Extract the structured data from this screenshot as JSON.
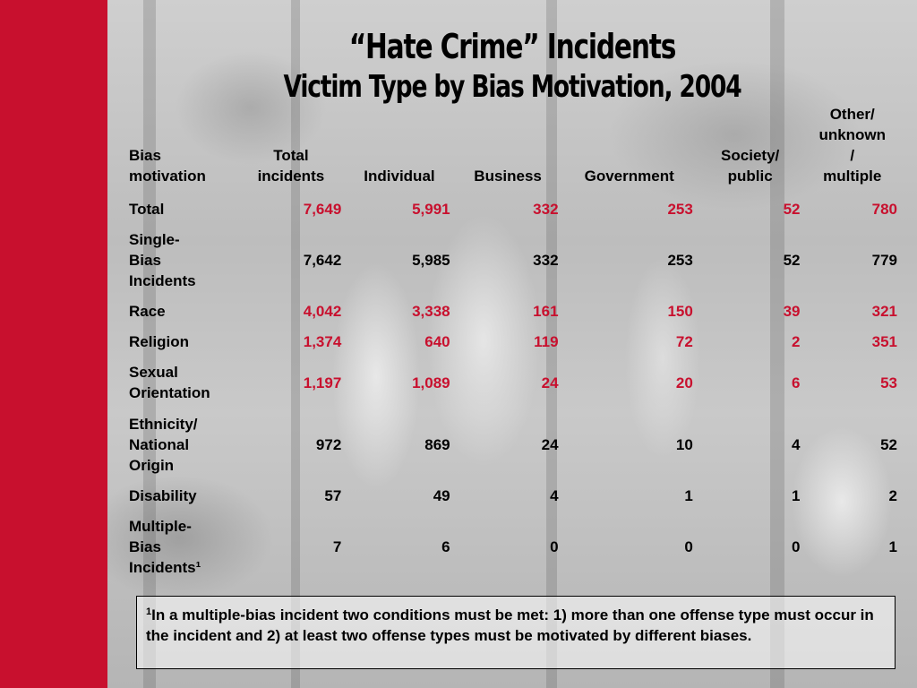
{
  "title": {
    "line1": "“Hate Crime” Incidents",
    "line2": "Victim Type by Bias Motivation, 2004"
  },
  "columns": {
    "bias_motivation": [
      "Bias",
      "motivation"
    ],
    "total_incidents": [
      "Total",
      "incidents"
    ],
    "individual": "Individual",
    "business": "Business",
    "government": "Government",
    "society_public": [
      "Society/",
      "public"
    ],
    "other": [
      "Other/",
      "unknown",
      "/",
      "multiple"
    ]
  },
  "rows": [
    {
      "label": [
        "Total"
      ],
      "values": [
        "7,649",
        "5,991",
        "332",
        "253",
        "52",
        "780"
      ],
      "highlight": true
    },
    {
      "label": [
        "Single-",
        "Bias",
        "Incidents"
      ],
      "values": [
        "7,642",
        "5,985",
        "332",
        "253",
        "52",
        "779"
      ],
      "highlight": false
    },
    {
      "label": [
        "Race"
      ],
      "values": [
        "4,042",
        "3,338",
        "161",
        "150",
        "39",
        "321"
      ],
      "highlight": true
    },
    {
      "label": [
        "Religion"
      ],
      "values": [
        "1,374",
        "640",
        "119",
        "72",
        "2",
        "351"
      ],
      "highlight": true
    },
    {
      "label": [
        "Sexual",
        "Orientation"
      ],
      "values": [
        "1,197",
        "1,089",
        "24",
        "20",
        "6",
        "53"
      ],
      "highlight": true
    },
    {
      "label": [
        "Ethnicity/",
        "National",
        "Origin"
      ],
      "values": [
        "972",
        "869",
        "24",
        "10",
        "4",
        "52"
      ],
      "highlight": false
    },
    {
      "label": [
        "Disability"
      ],
      "values": [
        "57",
        "49",
        "4",
        "1",
        "1",
        "2"
      ],
      "highlight": false
    },
    {
      "label": [
        "Multiple-",
        "Bias",
        "Incidents¹"
      ],
      "values": [
        "7",
        "6",
        "0",
        "0",
        "0",
        "1"
      ],
      "highlight": false
    }
  ],
  "footnote": {
    "marker": "1",
    "text": "In a multiple-bias incident two conditions must be met: 1) more than one offense type must occur in the incident and 2) at least two offense types must be motivated by different biases."
  },
  "colors": {
    "accent_red": "#c8102e",
    "bar_red": "#c8102e",
    "text": "#000000"
  }
}
